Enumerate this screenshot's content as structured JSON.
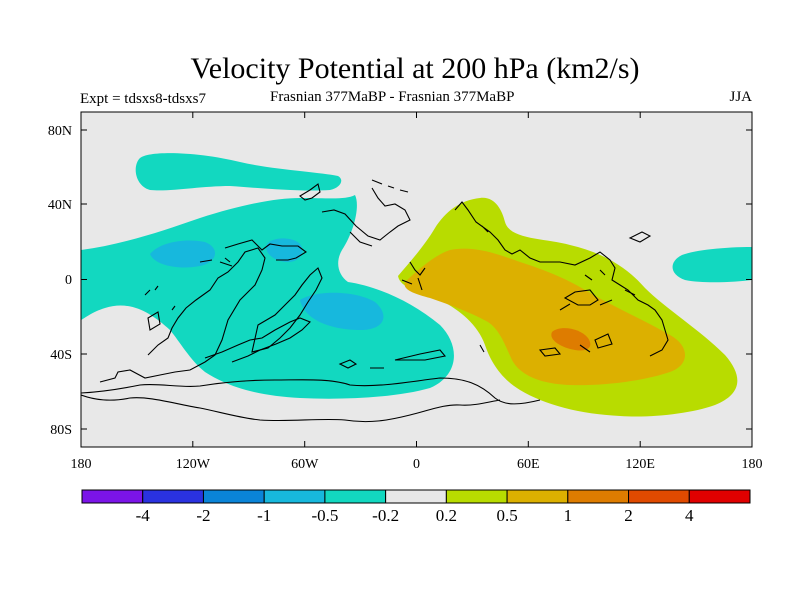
{
  "chart_data": {
    "type": "contour-map",
    "title": "Velocity Potential at 200 hPa (km2/s)",
    "left_label": "Expt = tdsxs8-tdsxs7",
    "center_label": "Frasnian 377MaBP - Frasnian 377MaBP",
    "right_label": "JJA",
    "x_ticks": [
      "180",
      "120W",
      "60W",
      "0",
      "60E",
      "120E",
      "180"
    ],
    "y_ticks": [
      "80N",
      "40N",
      "0",
      "40S",
      "80S"
    ],
    "lon_range": [
      -180,
      180
    ],
    "lat_range": [
      -90,
      90
    ],
    "colorbar": {
      "colors": [
        "#7b14e8",
        "#2a32e0",
        "#0a84d8",
        "#17b8dd",
        "#12d8c0",
        "#e8e8e8",
        "#b8dc00",
        "#dcb000",
        "#de7c00",
        "#e04a00",
        "#e00000"
      ],
      "labels": [
        "-4",
        "-2",
        "-1",
        "-0.5",
        "-0.2",
        "0.2",
        "0.5",
        "1",
        "2",
        "4"
      ]
    },
    "anomaly_regions": [
      {
        "level": "-0.2 to -0.5",
        "color": "#12d8c0",
        "location": "North Pacific high latitudes (~60N, 140W-100W)"
      },
      {
        "level": "-0.2 to -0.5",
        "color": "#12d8c0",
        "location": "Eastern Pacific / Panthalassa tropics and Gondwana west, 40N-60S"
      },
      {
        "level": "-0.5 to -1",
        "color": "#17b8dd",
        "location": "Centers near 10N 130W, 15N 75W and 20S 45W"
      },
      {
        "level": "-0.2 to -0.5",
        "color": "#12d8c0",
        "location": "Eastern edge near 180, 0-10N"
      },
      {
        "level": "0.2 to 0.5",
        "color": "#b8dc00",
        "location": "Paleo-Tethys / Eastern Hemisphere, 40N-70S, 0-150E"
      },
      {
        "level": "0.5 to 1",
        "color": "#dcb000",
        "location": "Eastern Hemisphere 0-55S, 15E-145E"
      },
      {
        "level": "1 to 2",
        "color": "#de7c00",
        "location": "Maximum near 35S, 85E"
      }
    ]
  }
}
